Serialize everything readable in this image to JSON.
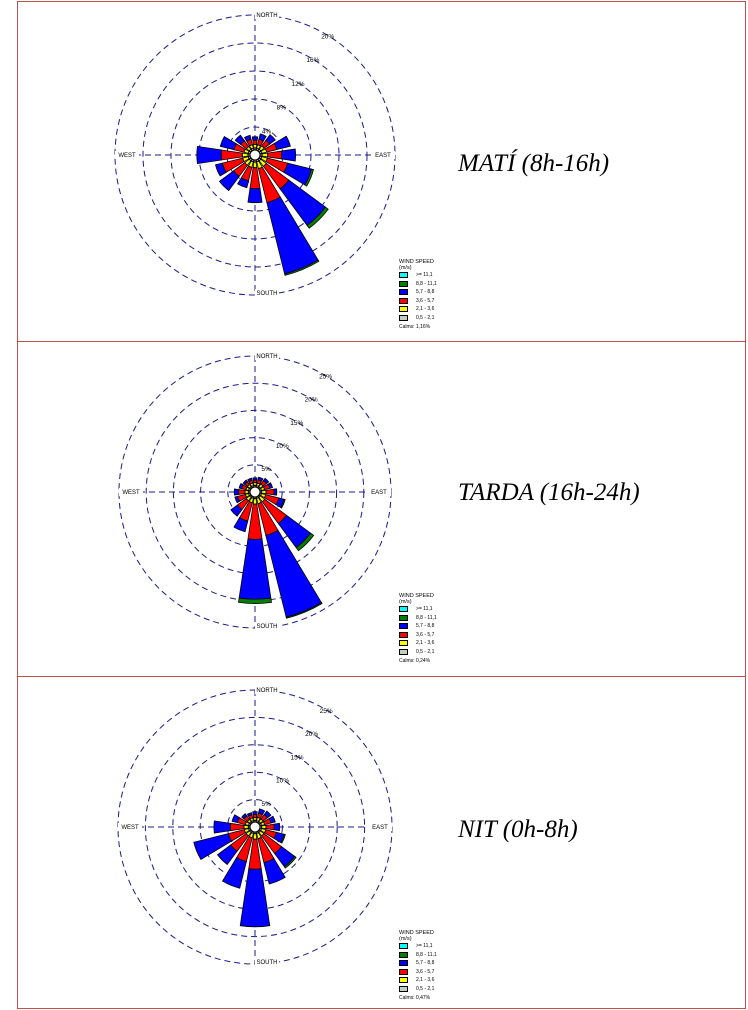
{
  "legend": {
    "title_line1": "WIND SPEED",
    "title_line2": "(m/s)",
    "bins": [
      {
        "label": ">= 11,1",
        "color": "#00ffff"
      },
      {
        "label": "8,8 - 11,1",
        "color": "#008000"
      },
      {
        "label": "5,7 - 8,8",
        "color": "#0000ff"
      },
      {
        "label": "3,6 - 5,7",
        "color": "#ff0000"
      },
      {
        "label": "2,1 - 3,6",
        "color": "#ffff00"
      },
      {
        "label": "0,5 - 2,1",
        "color": "#c0d0c0"
      }
    ]
  },
  "compass": {
    "north": "NORTH",
    "south": "SOUTH",
    "east": "EAST",
    "west": "WEST"
  },
  "chart_data": [
    {
      "type": "wind-rose",
      "title": "MATÍ (8h-16h)",
      "calms": "Calms: 1,16%",
      "rings": [
        4,
        8,
        12,
        16,
        20
      ],
      "ring_labels": [
        "4%",
        "8%",
        "12%",
        "16%",
        "20%"
      ],
      "max": 20,
      "directions": [
        0,
        22.5,
        45,
        67.5,
        90,
        112.5,
        135,
        157.5,
        180,
        202.5,
        225,
        247.5,
        270,
        292.5,
        315,
        337.5
      ],
      "speed_bins": [
        "0,5 - 2,1",
        "2,1 - 3,6",
        "3,6 - 5,7",
        "5,7 - 8,8",
        "8,8 - 11,1",
        ">= 11,1"
      ],
      "frequencies": [
        [
          0.3,
          0.5,
          0.6,
          0.5,
          0,
          0
        ],
        [
          0.3,
          0.5,
          0.8,
          0.8,
          0,
          0
        ],
        [
          0.3,
          0.6,
          1.0,
          1.0,
          0,
          0
        ],
        [
          0.3,
          0.7,
          1.5,
          2.0,
          0,
          0
        ],
        [
          0.3,
          0.8,
          2.0,
          2.0,
          0,
          0
        ],
        [
          0.3,
          0.8,
          3.0,
          3.5,
          0.3,
          0
        ],
        [
          0.3,
          1.0,
          4.0,
          6.5,
          0.5,
          0
        ],
        [
          0.3,
          1.0,
          5.0,
          10.5,
          0.2,
          0
        ],
        [
          0.3,
          0.8,
          3.0,
          2.0,
          0,
          0
        ],
        [
          0.3,
          0.8,
          2.0,
          1.0,
          0,
          0
        ],
        [
          0.3,
          0.8,
          2.0,
          2.5,
          0,
          0
        ],
        [
          0.3,
          0.8,
          3.0,
          1.0,
          0,
          0
        ],
        [
          0.3,
          0.8,
          3.0,
          3.5,
          0,
          0
        ],
        [
          0.3,
          0.6,
          1.5,
          2.0,
          0,
          0
        ],
        [
          0.3,
          0.5,
          1.0,
          1.0,
          0,
          0
        ],
        [
          0.3,
          0.5,
          0.8,
          0.6,
          0,
          0
        ]
      ]
    },
    {
      "type": "wind-rose",
      "title": "TARDA (16h-24h)",
      "calms": "Calms: 0,24%",
      "rings": [
        5,
        10,
        15,
        20,
        25
      ],
      "ring_labels": [
        "5%",
        "10%",
        "15%",
        "20%",
        "25%"
      ],
      "max": 25,
      "directions": [
        0,
        22.5,
        45,
        67.5,
        90,
        112.5,
        135,
        157.5,
        180,
        202.5,
        225,
        247.5,
        270,
        292.5,
        315,
        337.5
      ],
      "speed_bins": [
        "0,5 - 2,1",
        "2,1 - 3,6",
        "3,6 - 5,7",
        "5,7 - 8,8",
        "8,8 - 11,1",
        ">= 11,1"
      ],
      "frequencies": [
        [
          0.3,
          0.5,
          0.5,
          0.4,
          0,
          0
        ],
        [
          0.3,
          0.5,
          0.6,
          0.5,
          0,
          0
        ],
        [
          0.3,
          0.6,
          0.8,
          0.5,
          0,
          0
        ],
        [
          0.3,
          0.6,
          1.0,
          0.5,
          0,
          0
        ],
        [
          0.3,
          0.8,
          1.5,
          0.5,
          0,
          0
        ],
        [
          0.3,
          0.8,
          2.5,
          1.0,
          0.2,
          0
        ],
        [
          0.3,
          1.0,
          5.0,
          5.5,
          0.7,
          0
        ],
        [
          0.3,
          1.0,
          6.0,
          15.5,
          0.2,
          0
        ],
        [
          0.3,
          1.0,
          6.5,
          11.0,
          0.8,
          0
        ],
        [
          0.3,
          0.8,
          3.5,
          2.0,
          0,
          0
        ],
        [
          0.3,
          0.8,
          2.0,
          1.5,
          0,
          0
        ],
        [
          0.3,
          0.6,
          1.5,
          0.5,
          0,
          0
        ],
        [
          0.3,
          0.6,
          1.2,
          0.8,
          0,
          0
        ],
        [
          0.3,
          0.5,
          0.8,
          0.5,
          0,
          0
        ],
        [
          0.3,
          0.5,
          0.6,
          0.4,
          0,
          0
        ],
        [
          0.3,
          0.5,
          0.5,
          0.4,
          0,
          0
        ]
      ]
    },
    {
      "type": "wind-rose",
      "title": "NIT (0h-8h)",
      "calms": "Calms: 0,47%",
      "rings": [
        5,
        10,
        15,
        20,
        25
      ],
      "ring_labels": [
        "5%",
        "10%",
        "15%",
        "20%",
        "25%"
      ],
      "max": 25,
      "directions": [
        0,
        22.5,
        45,
        67.5,
        90,
        112.5,
        135,
        157.5,
        180,
        202.5,
        225,
        247.5,
        270,
        292.5,
        315,
        337.5
      ],
      "speed_bins": [
        "0,5 - 2,1",
        "2,1 - 3,6",
        "3,6 - 5,7",
        "5,7 - 8,8",
        "8,8 - 11,1",
        ">= 11,1"
      ],
      "frequencies": [
        [
          0.3,
          0.5,
          0.6,
          0.5,
          0,
          0
        ],
        [
          0.3,
          0.6,
          0.8,
          0.8,
          0,
          0
        ],
        [
          0.3,
          0.6,
          1.0,
          0.8,
          0,
          0
        ],
        [
          0.3,
          0.6,
          1.2,
          0.8,
          0,
          0
        ],
        [
          0.3,
          0.8,
          1.5,
          1.0,
          0,
          0
        ],
        [
          0.3,
          0.8,
          2.0,
          1.5,
          0.2,
          0
        ],
        [
          0.3,
          0.8,
          4.0,
          3.0,
          0.3,
          0
        ],
        [
          0.3,
          1.0,
          4.5,
          4.0,
          0,
          0
        ],
        [
          0.3,
          1.0,
          5.5,
          10.5,
          0,
          0
        ],
        [
          0.3,
          0.8,
          4.5,
          5.0,
          0,
          0
        ],
        [
          0.3,
          0.8,
          3.5,
          3.0,
          0,
          0
        ],
        [
          0.3,
          0.8,
          3.0,
          6.5,
          0,
          0
        ],
        [
          0.3,
          0.8,
          2.5,
          3.0,
          0,
          0
        ],
        [
          0.3,
          0.6,
          1.5,
          1.0,
          0,
          0
        ],
        [
          0.3,
          0.5,
          0.8,
          0.5,
          0,
          0
        ],
        [
          0.3,
          0.5,
          0.6,
          0.4,
          0,
          0
        ]
      ]
    }
  ]
}
